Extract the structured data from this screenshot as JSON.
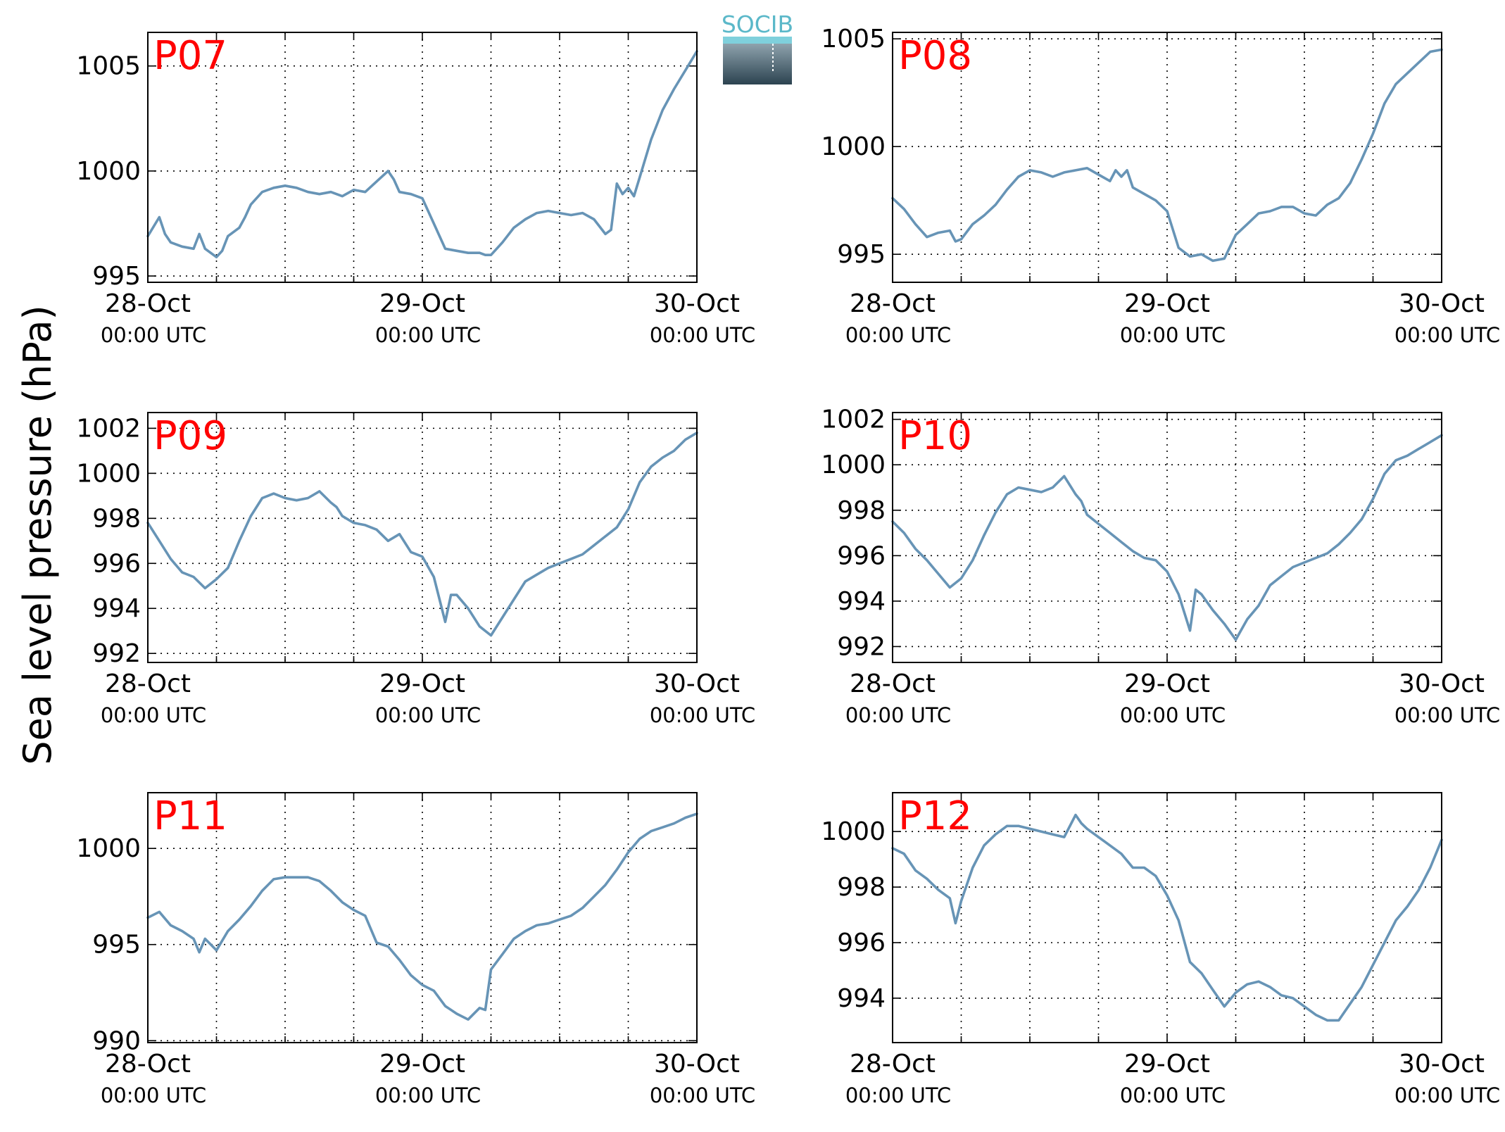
{
  "figure": {
    "ylabel": "Sea level pressure (hPa)",
    "logo_text": "SOCIB",
    "line_color": "#6794b6",
    "label_color": "#ff0000"
  },
  "chart_data": [
    {
      "type": "line",
      "label": "P07",
      "ylim": [
        994.7,
        1006.6
      ],
      "yticks": [
        995,
        1000,
        1005
      ],
      "x_ticks": [
        {
          "x": 0,
          "label": "28-Oct",
          "sub": "00:00 UTC"
        },
        {
          "x": 24,
          "label": "29-Oct",
          "sub": "00:00 UTC"
        },
        {
          "x": 48,
          "label": "30-Oct",
          "sub": "00:00 UTC"
        }
      ],
      "x_hours": [
        0,
        1,
        1.5,
        2,
        3,
        4,
        4.5,
        5,
        6,
        6.5,
        7,
        8,
        8.5,
        9,
        10,
        11,
        12,
        13,
        14,
        15,
        16,
        17,
        18,
        19,
        20,
        21,
        21.5,
        22,
        23,
        24,
        25,
        26,
        27,
        28,
        29,
        29.5,
        30,
        31,
        32,
        33,
        34,
        35,
        36,
        37,
        38,
        39,
        40,
        40.5,
        41,
        41.5,
        42,
        42.5,
        43,
        44,
        45,
        46,
        47,
        48
      ],
      "values": [
        996.9,
        997.8,
        997.0,
        996.6,
        996.4,
        996.3,
        997.0,
        996.3,
        995.9,
        996.2,
        996.9,
        997.3,
        997.8,
        998.4,
        999.0,
        999.2,
        999.3,
        999.2,
        999.0,
        998.9,
        999.0,
        998.8,
        999.1,
        999.0,
        999.5,
        1000.0,
        999.6,
        999.0,
        998.9,
        998.7,
        997.5,
        996.3,
        996.2,
        996.1,
        996.1,
        996.0,
        996.0,
        996.6,
        997.3,
        997.7,
        998.0,
        998.1,
        998.0,
        997.9,
        998.0,
        997.7,
        997.0,
        997.2,
        999.4,
        998.9,
        999.2,
        998.8,
        999.7,
        1001.5,
        1002.9,
        1003.9,
        1004.8,
        1005.7
      ]
    },
    {
      "type": "line",
      "label": "P08",
      "ylim": [
        993.7,
        1005.3
      ],
      "yticks": [
        995,
        1000,
        1005
      ],
      "x_ticks": [
        {
          "x": 0,
          "label": "28-Oct",
          "sub": "00:00 UTC"
        },
        {
          "x": 24,
          "label": "29-Oct",
          "sub": "00:00 UTC"
        },
        {
          "x": 48,
          "label": "30-Oct",
          "sub": "00:00 UTC"
        }
      ],
      "x_hours": [
        0,
        1,
        2,
        3,
        4,
        5,
        5.5,
        6,
        7,
        8,
        9,
        10,
        11,
        12,
        13,
        14,
        15,
        16,
        17,
        18,
        19,
        19.5,
        20,
        20.5,
        21,
        22,
        23,
        24,
        25,
        26,
        27,
        28,
        29,
        30,
        31,
        32,
        33,
        34,
        35,
        36,
        37,
        38,
        39,
        40,
        41,
        42,
        43,
        44,
        45,
        46,
        47,
        48
      ],
      "values": [
        997.6,
        997.1,
        996.4,
        995.8,
        996.0,
        996.1,
        995.6,
        995.7,
        996.4,
        996.8,
        997.3,
        998.0,
        998.6,
        998.9,
        998.8,
        998.6,
        998.8,
        998.9,
        999.0,
        998.7,
        998.4,
        998.9,
        998.6,
        998.9,
        998.1,
        997.8,
        997.5,
        997.0,
        995.3,
        994.9,
        995.0,
        994.7,
        994.8,
        995.9,
        996.4,
        996.9,
        997.0,
        997.2,
        997.2,
        996.9,
        996.8,
        997.3,
        997.6,
        998.3,
        999.4,
        1000.6,
        1002.0,
        1002.9,
        1003.4,
        1003.9,
        1004.4,
        1004.5
      ]
    },
    {
      "type": "line",
      "label": "P09",
      "ylim": [
        991.6,
        1002.7
      ],
      "yticks": [
        992,
        994,
        996,
        998,
        1000,
        1002
      ],
      "x_ticks": [
        {
          "x": 0,
          "label": "28-Oct",
          "sub": "00:00 UTC"
        },
        {
          "x": 24,
          "label": "29-Oct",
          "sub": "00:00 UTC"
        },
        {
          "x": 48,
          "label": "30-Oct",
          "sub": "00:00 UTC"
        }
      ],
      "x_hours": [
        0,
        1,
        2,
        3,
        4,
        5,
        6,
        7,
        8,
        9,
        10,
        11,
        12,
        13,
        14,
        15,
        16,
        16.5,
        17,
        18,
        19,
        20,
        21,
        22,
        23,
        24,
        25,
        26,
        26.5,
        27,
        28,
        29,
        30,
        31,
        32,
        33,
        34,
        35,
        36,
        37,
        38,
        39,
        40,
        41,
        42,
        43,
        44,
        45,
        46,
        47,
        48
      ],
      "values": [
        997.8,
        997.0,
        996.2,
        995.6,
        995.4,
        994.9,
        995.3,
        995.8,
        997.0,
        998.1,
        998.9,
        999.1,
        998.9,
        998.8,
        998.9,
        999.2,
        998.7,
        998.5,
        998.1,
        997.8,
        997.7,
        997.5,
        997.0,
        997.3,
        996.5,
        996.3,
        995.4,
        993.4,
        994.6,
        994.6,
        994.0,
        993.2,
        992.8,
        993.6,
        994.4,
        995.2,
        995.5,
        995.8,
        996.0,
        996.2,
        996.4,
        996.8,
        997.2,
        997.6,
        998.4,
        999.6,
        1000.3,
        1000.7,
        1001.0,
        1001.5,
        1001.8
      ]
    },
    {
      "type": "line",
      "label": "P10",
      "ylim": [
        991.3,
        1002.3
      ],
      "yticks": [
        992,
        994,
        996,
        998,
        1000,
        1002
      ],
      "x_ticks": [
        {
          "x": 0,
          "label": "28-Oct",
          "sub": "00:00 UTC"
        },
        {
          "x": 24,
          "label": "29-Oct",
          "sub": "00:00 UTC"
        },
        {
          "x": 48,
          "label": "30-Oct",
          "sub": "00:00 UTC"
        }
      ],
      "x_hours": [
        0,
        1,
        2,
        3,
        4,
        5,
        6,
        7,
        8,
        9,
        10,
        11,
        12,
        13,
        14,
        15,
        16,
        16.5,
        17,
        18,
        19,
        20,
        21,
        22,
        23,
        24,
        25,
        26,
        26.5,
        27,
        28,
        29,
        30,
        31,
        32,
        33,
        34,
        35,
        36,
        37,
        38,
        39,
        40,
        41,
        42,
        43,
        44,
        45,
        46,
        47,
        48
      ],
      "values": [
        997.5,
        997.0,
        996.3,
        995.8,
        995.2,
        994.6,
        995.0,
        995.8,
        996.9,
        997.9,
        998.7,
        999.0,
        998.9,
        998.8,
        999.0,
        999.5,
        998.7,
        998.4,
        997.8,
        997.4,
        997.0,
        996.6,
        996.2,
        995.9,
        995.8,
        995.3,
        994.3,
        992.7,
        994.5,
        994.3,
        993.6,
        993.0,
        992.3,
        993.2,
        993.8,
        994.7,
        995.1,
        995.5,
        995.7,
        995.9,
        996.1,
        996.5,
        997.0,
        997.6,
        998.5,
        999.6,
        1000.2,
        1000.4,
        1000.7,
        1001.0,
        1001.3
      ]
    },
    {
      "type": "line",
      "label": "P11",
      "ylim": [
        989.9,
        1002.9
      ],
      "yticks": [
        990,
        995,
        1000
      ],
      "x_ticks": [
        {
          "x": 0,
          "label": "28-Oct",
          "sub": "00:00 UTC"
        },
        {
          "x": 24,
          "label": "29-Oct",
          "sub": "00:00 UTC"
        },
        {
          "x": 48,
          "label": "30-Oct",
          "sub": "00:00 UTC"
        }
      ],
      "x_hours": [
        0,
        1,
        2,
        3,
        4,
        4.5,
        5,
        6,
        7,
        8,
        9,
        10,
        11,
        12,
        13,
        14,
        15,
        16,
        17,
        18,
        19,
        20,
        21,
        22,
        23,
        24,
        25,
        26,
        27,
        28,
        29,
        29.5,
        30,
        31,
        32,
        33,
        34,
        35,
        36,
        37,
        38,
        39,
        40,
        41,
        42,
        43,
        44,
        45,
        46,
        47,
        48
      ],
      "values": [
        996.4,
        996.7,
        996.0,
        995.7,
        995.3,
        994.6,
        995.3,
        994.7,
        995.7,
        996.3,
        997.0,
        997.8,
        998.4,
        998.5,
        998.5,
        998.5,
        998.3,
        997.8,
        997.2,
        996.8,
        996.5,
        995.1,
        994.9,
        994.2,
        993.4,
        992.9,
        992.6,
        991.8,
        991.4,
        991.1,
        991.7,
        991.6,
        993.7,
        994.5,
        995.3,
        995.7,
        996.0,
        996.1,
        996.3,
        996.5,
        996.9,
        997.5,
        998.1,
        998.9,
        999.8,
        1000.5,
        1000.9,
        1001.1,
        1001.3,
        1001.6,
        1001.8
      ]
    },
    {
      "type": "line",
      "label": "P12",
      "ylim": [
        992.4,
        1001.4
      ],
      "yticks": [
        994,
        996,
        998,
        1000
      ],
      "x_ticks": [
        {
          "x": 0,
          "label": "28-Oct",
          "sub": "00:00 UTC"
        },
        {
          "x": 24,
          "label": "29-Oct",
          "sub": "00:00 UTC"
        },
        {
          "x": 48,
          "label": "30-Oct",
          "sub": "00:00 UTC"
        }
      ],
      "x_hours": [
        0,
        1,
        2,
        3,
        4,
        5,
        5.5,
        6,
        7,
        8,
        9,
        10,
        11,
        12,
        13,
        14,
        15,
        16,
        16.5,
        17,
        18,
        19,
        20,
        21,
        22,
        23,
        24,
        25,
        26,
        27,
        28,
        29,
        30,
        31,
        32,
        33,
        34,
        35,
        36,
        37,
        38,
        39,
        40,
        41,
        42,
        43,
        44,
        45,
        46,
        47,
        48
      ],
      "values": [
        999.4,
        999.2,
        998.6,
        998.3,
        997.9,
        997.6,
        996.7,
        997.5,
        998.7,
        999.5,
        999.9,
        1000.2,
        1000.2,
        1000.1,
        1000.0,
        999.9,
        999.8,
        1000.6,
        1000.3,
        1000.1,
        999.8,
        999.5,
        999.2,
        998.7,
        998.7,
        998.4,
        997.7,
        996.8,
        995.3,
        994.9,
        994.3,
        993.7,
        994.2,
        994.5,
        994.6,
        994.4,
        994.1,
        994.0,
        993.7,
        993.4,
        993.2,
        993.2,
        993.8,
        994.4,
        995.2,
        996.0,
        996.8,
        997.3,
        997.9,
        998.7,
        999.7
      ]
    }
  ]
}
